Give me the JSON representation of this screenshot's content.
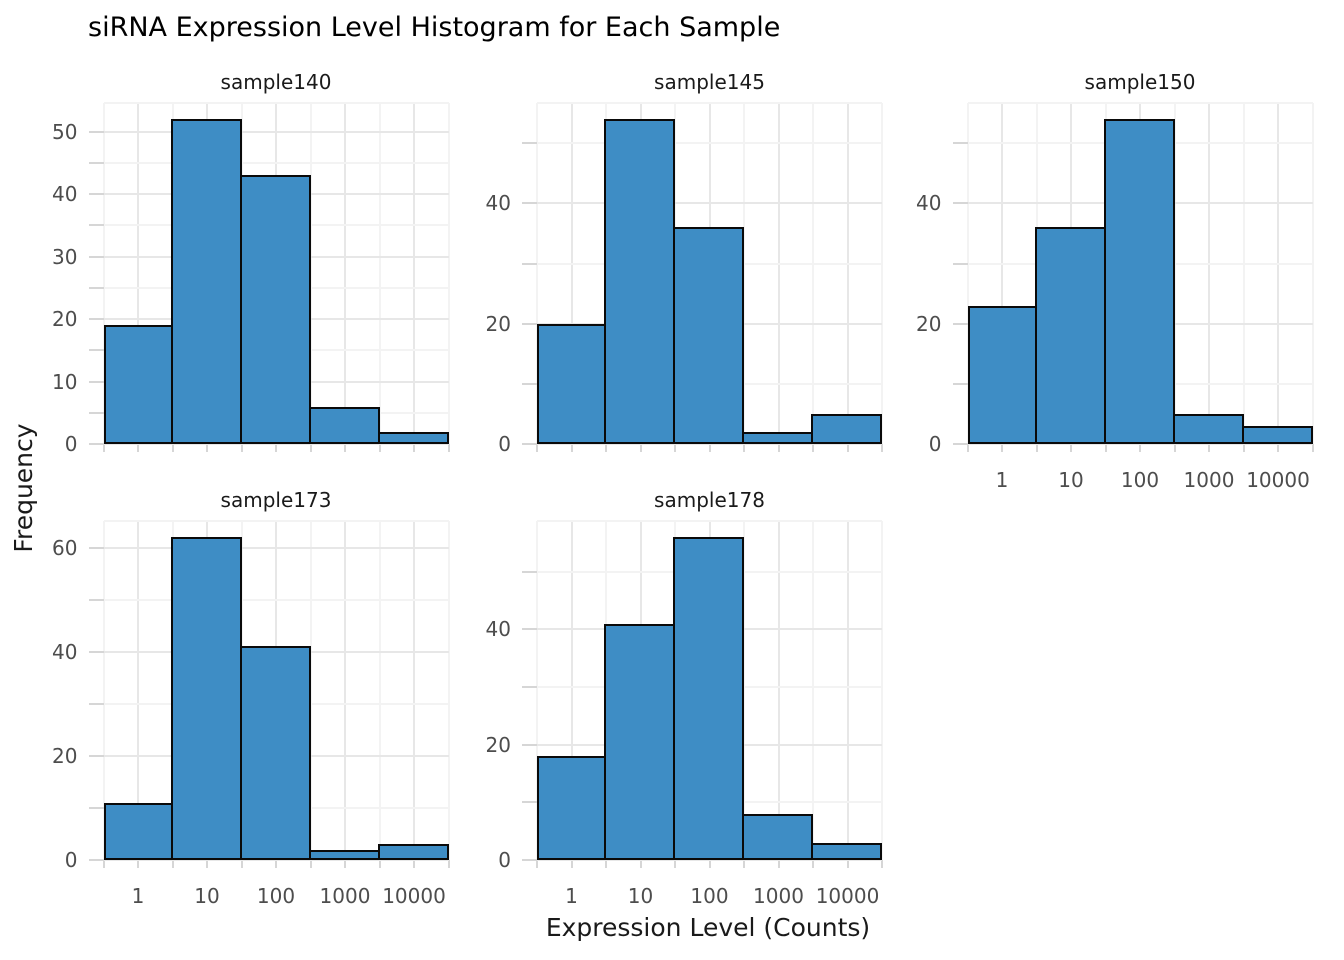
{
  "title": "siRNA Expression Level Histogram for Each Sample",
  "colors": {
    "bar_fill": "#3e8dc5",
    "bar_stroke": "#0a0a0a",
    "grid_major": "#e7e7e7",
    "grid_minor": "#f3f3f3",
    "tick_mark": "#d6d6d6",
    "axis_text": "#4d4d4d",
    "strip_text": "#1a1a1a",
    "title_text": "#000000",
    "background": "#ffffff"
  },
  "chart_data": {
    "type": "bar",
    "subtype": "faceted-histogram",
    "title": "siRNA Expression Level Histogram for Each Sample",
    "xlabel": "Expression Level (Counts)",
    "ylabel": "Frequency",
    "x_scale": "log10",
    "x_tick_labels": [
      "1",
      "10",
      "100",
      "1000",
      "10000"
    ],
    "bin_centers": [
      1,
      10,
      100,
      1000,
      10000
    ],
    "bin_edges_log10": [
      -0.5,
      0.5,
      1.5,
      2.5,
      3.5,
      4.5
    ],
    "grid": true,
    "legend_position": "none",
    "facet_layout": {
      "rows": 2,
      "cols": 3
    },
    "panels": [
      {
        "name": "sample140",
        "frequencies": [
          19,
          52,
          43,
          6,
          2
        ],
        "yticks": [
          0,
          10,
          20,
          30,
          40,
          50
        ],
        "show_x_axis": false
      },
      {
        "name": "sample145",
        "frequencies": [
          20,
          54,
          36,
          2,
          5
        ],
        "yticks": [
          0,
          20,
          40
        ],
        "show_x_axis": false
      },
      {
        "name": "sample150",
        "frequencies": [
          23,
          36,
          54,
          5,
          3
        ],
        "yticks": [
          0,
          20,
          40
        ],
        "show_x_axis": true
      },
      {
        "name": "sample173",
        "frequencies": [
          11,
          62,
          41,
          2,
          3
        ],
        "yticks": [
          0,
          20,
          40,
          60
        ],
        "show_x_axis": true
      },
      {
        "name": "sample178",
        "frequencies": [
          18,
          41,
          56,
          8,
          3
        ],
        "yticks": [
          0,
          20,
          40
        ],
        "show_x_axis": true
      }
    ]
  }
}
